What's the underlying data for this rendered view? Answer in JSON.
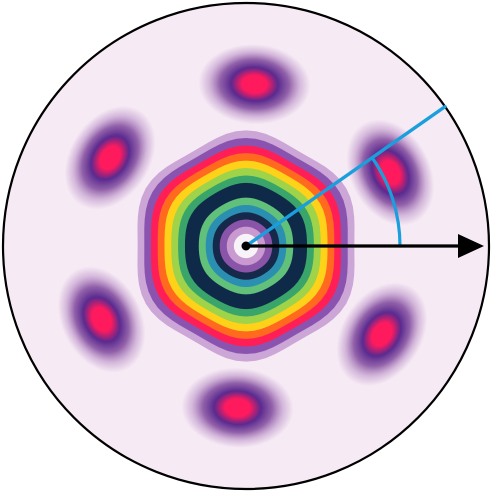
{
  "figure": {
    "background": "#ffffff",
    "disk": {
      "fill": "#f6eaf4",
      "outline_color": "#000000"
    },
    "lobes": {
      "count": 6,
      "first_angle_deg": -27,
      "colors": {
        "outer": "#c8a6d2",
        "mid": "#8d5aa6",
        "core": "#5a2a8f",
        "hot": "#ff1a5e"
      }
    },
    "central_rings": [
      "#f7f3f9",
      "#c89ad0",
      "#8a55a8",
      "#16294a",
      "#2a8fb0",
      "#61c07a",
      "#0f2a48",
      "#0f2a48",
      "#3aa56a",
      "#9fd34a",
      "#ffd21a",
      "#ff6a1e",
      "#ff1f56",
      "#8a53b0",
      "#cba6d6"
    ],
    "reference_arrow": {
      "color": "#000000",
      "direction": "right"
    },
    "angle_indicator": {
      "color": "#1a9fdc",
      "angle_deg": 35
    }
  }
}
